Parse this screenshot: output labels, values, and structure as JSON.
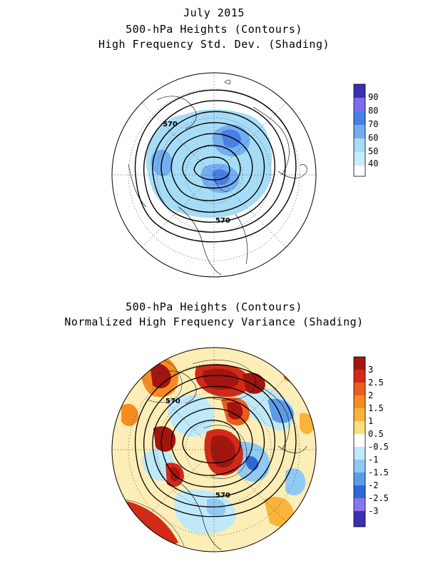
{
  "titles": {
    "month": "July 2015",
    "top_line1": "500-hPa Heights (Contours)",
    "top_line2": "High Frequency Std. Dev. (Shading)",
    "bottom_line1": "500-hPa Heights (Contours)",
    "bottom_line2": "Normalized High Frequency Variance (Shading)"
  },
  "contour_labels": {
    "top_a": "570",
    "top_b": "570",
    "bottom_a": "570",
    "bottom_b": "570"
  },
  "top_colorbar": {
    "labels": [
      "90",
      "80",
      "70",
      "60",
      "50",
      "40"
    ],
    "colors": [
      "#3a2fb0",
      "#7b6cf2",
      "#4a7fe6",
      "#73aef1",
      "#a7dcf7",
      "#ffffff"
    ]
  },
  "bottom_colorbar": {
    "labels": [
      "3",
      "2.5",
      "2",
      "1.5",
      "1",
      "0.5",
      "-0.5",
      "-1",
      "-1.5",
      "-2",
      "-2.5",
      "-3"
    ],
    "colors": [
      "#a4150f",
      "#d32a18",
      "#ec5c1d",
      "#f68c21",
      "#f9b43a",
      "#fce07c",
      "#ffffff",
      "#bfe9f9",
      "#92c9f2",
      "#5d9be8",
      "#3068d6",
      "#8a76ec",
      "#3c2fb0"
    ]
  }
}
